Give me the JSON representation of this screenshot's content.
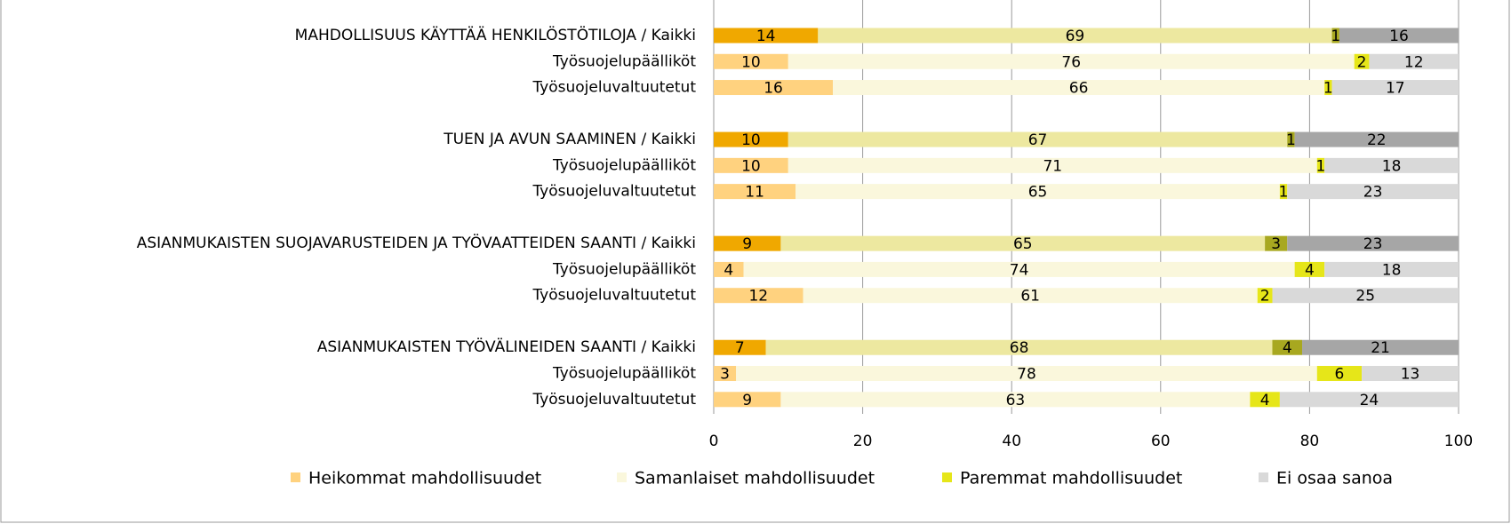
{
  "chart_data": {
    "type": "stacked_bar_horizontal",
    "categories": [
      "MAHDOLLISUUS KÄYTTÄÄ HENKILÖSTÖTILOJA / Kaikki",
      "Työsuojelupäälliköt",
      "Työsuojeluvaltuutetut",
      "TUEN JA AVUN SAAMINEN / Kaikki",
      "Työsuojelupäälliköt",
      "Työsuojeluvaltuutetut",
      "ASIANMUKAISTEN SUOJAVARUSTEIDEN JA TYÖVAATTEIDEN SAANTI / Kaikki",
      "Työsuojelupäälliköt",
      "Työsuojeluvaltuutetut",
      "ASIANMUKAISTEN TYÖVÄLINEIDEN SAANTI / Kaikki",
      "Työsuojelupäälliköt",
      "Työsuojeluvaltuutetut"
    ],
    "series": [
      {
        "name": "Heikommat mahdollisuudet",
        "color": "#ffd27f",
        "colors": [
          "#f0a800",
          "#ffd27f",
          "#ffd27f",
          "#f0a800",
          "#ffd27f",
          "#ffd27f",
          "#f0a800",
          "#ffd27f",
          "#ffd27f",
          "#f0a800",
          "#ffd27f",
          "#ffd27f"
        ],
        "values": [
          14,
          10,
          16,
          10,
          10,
          11,
          9,
          4,
          12,
          7,
          3,
          9
        ]
      },
      {
        "name": "Samanlaiset mahdollisuudet",
        "color": "#faf7dc",
        "colors": [
          "#ede8a0",
          "#faf7dc",
          "#faf7dc",
          "#ede8a0",
          "#faf7dc",
          "#faf7dc",
          "#ede8a0",
          "#faf7dc",
          "#faf7dc",
          "#ede8a0",
          "#faf7dc",
          "#faf7dc"
        ],
        "values": [
          69,
          76,
          66,
          67,
          71,
          65,
          65,
          74,
          61,
          68,
          78,
          63
        ]
      },
      {
        "name": "Paremmat mahdollisuudet",
        "color": "#e6e619",
        "colors": [
          "#a8a820",
          "#e6e619",
          "#e6e619",
          "#a8a820",
          "#e6e619",
          "#e6e619",
          "#a8a820",
          "#e6e619",
          "#e6e619",
          "#a8a820",
          "#e6e619",
          "#e6e619"
        ],
        "values": [
          1,
          2,
          1,
          1,
          1,
          1,
          3,
          4,
          2,
          4,
          6,
          4
        ]
      },
      {
        "name": "Ei osaa sanoa",
        "color": "#d9d9d9",
        "colors": [
          "#a6a6a6",
          "#d9d9d9",
          "#d9d9d9",
          "#a6a6a6",
          "#d9d9d9",
          "#d9d9d9",
          "#a6a6a6",
          "#d9d9d9",
          "#d9d9d9",
          "#a6a6a6",
          "#d9d9d9",
          "#d9d9d9"
        ],
        "values": [
          16,
          12,
          17,
          22,
          18,
          23,
          23,
          18,
          25,
          21,
          13,
          24
        ]
      }
    ],
    "xlim": [
      0,
      100
    ],
    "xticks": [
      0,
      20,
      40,
      60,
      80,
      100
    ],
    "grid": true
  }
}
